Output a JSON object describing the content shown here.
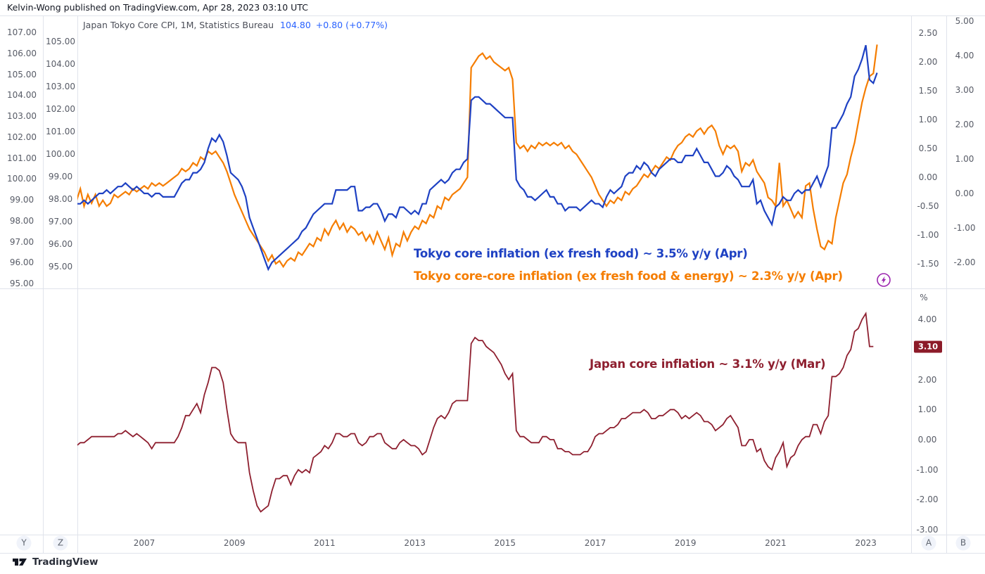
{
  "header": {
    "byline": "Kelvin-Wong published on TradingView.com, Apr 28, 2023 03:10 UTC"
  },
  "legend": {
    "title": "Japan Tokyo Core CPI, 1M, Statistics Bureau",
    "value": "104.80",
    "change": "+0.80 (+0.77%)"
  },
  "colors": {
    "blue": "#1e41c3",
    "orange": "#f57d00",
    "darkred": "#8e1f2f",
    "badge_bg": "#8c1b29",
    "legend_blue": "#2962ff",
    "purple_icon": "#9c27b0"
  },
  "axes": {
    "top_left_outer": {
      "ticks": [
        107,
        106,
        105,
        104,
        103,
        102,
        101,
        100,
        99,
        98,
        97,
        96,
        95
      ]
    },
    "top_left_inner": {
      "ticks": [
        105,
        104,
        103,
        102,
        101,
        100,
        99,
        98,
        97,
        96,
        95
      ]
    },
    "top_right_inner": {
      "ticks": [
        2.5,
        2.0,
        1.5,
        1.0,
        0.5,
        0.0,
        -0.5,
        -1.0,
        -1.5
      ]
    },
    "top_right_outer": {
      "ticks": [
        5,
        4,
        3,
        2,
        1,
        0,
        -1,
        -2
      ]
    },
    "bottom_right": {
      "unit": "%",
      "ticks": [
        4,
        2,
        1,
        0,
        -1,
        -2,
        -3
      ]
    },
    "time": {
      "ticks": [
        2007,
        2009,
        2011,
        2013,
        2015,
        2017,
        2019,
        2021,
        2023
      ]
    }
  },
  "badge": {
    "text": "3.10"
  },
  "annotations": {
    "blue": {
      "text": "Tokyo core inflation (ex fresh food) ~ 3.5% y/y (Apr)"
    },
    "orange": {
      "text": "Tokyo core-core inflation (ex fresh food & energy) ~ 2.3% y/y (Apr)"
    },
    "red": {
      "text": "Japan core inflation ~ 3.1% y/y (Mar)"
    }
  },
  "toolbar": {
    "y": "Y",
    "z": "Z",
    "a": "A",
    "b": "B"
  },
  "footer": {
    "brand": "TradingView"
  },
  "chart_data": [
    {
      "type": "line",
      "panel": "top",
      "title": "Tokyo CPI inflation y/y %",
      "x_range": [
        2005.5,
        2023.4
      ],
      "grid": false,
      "series": [
        {
          "name": "Tokyo core inflation (ex fresh food) y/y %",
          "color": "#1e41c3",
          "scale": "pct_outer",
          "axis_range": [
            -2,
            5
          ],
          "start": 2005.5,
          "step_months": 1,
          "values": [
            -0.3,
            -0.3,
            -0.2,
            -0.3,
            -0.2,
            -0.1,
            0.0,
            0.0,
            0.1,
            0.0,
            0.1,
            0.2,
            0.2,
            0.3,
            0.2,
            0.1,
            0.2,
            0.1,
            0.0,
            0.0,
            -0.1,
            0.0,
            0.0,
            -0.1,
            -0.1,
            -0.1,
            -0.1,
            0.1,
            0.3,
            0.4,
            0.4,
            0.6,
            0.6,
            0.7,
            0.9,
            1.3,
            1.6,
            1.5,
            1.7,
            1.5,
            1.1,
            0.6,
            0.5,
            0.4,
            0.2,
            -0.1,
            -0.7,
            -1.0,
            -1.3,
            -1.6,
            -1.9,
            -2.2,
            -2.0,
            -1.9,
            -1.8,
            -1.7,
            -1.6,
            -1.5,
            -1.4,
            -1.3,
            -1.1,
            -1.0,
            -0.8,
            -0.6,
            -0.5,
            -0.4,
            -0.3,
            -0.3,
            -0.3,
            0.1,
            0.1,
            0.1,
            0.1,
            0.2,
            0.2,
            -0.5,
            -0.5,
            -0.4,
            -0.4,
            -0.3,
            -0.3,
            -0.5,
            -0.8,
            -0.6,
            -0.6,
            -0.7,
            -0.4,
            -0.4,
            -0.5,
            -0.6,
            -0.5,
            -0.6,
            -0.3,
            -0.3,
            0.1,
            0.2,
            0.3,
            0.4,
            0.3,
            0.4,
            0.6,
            0.7,
            0.7,
            0.9,
            1.0,
            2.7,
            2.8,
            2.8,
            2.7,
            2.6,
            2.6,
            2.5,
            2.4,
            2.3,
            2.2,
            2.2,
            2.2,
            0.4,
            0.2,
            0.1,
            -0.1,
            -0.1,
            -0.2,
            -0.1,
            0.0,
            0.1,
            -0.1,
            -0.1,
            -0.3,
            -0.3,
            -0.5,
            -0.4,
            -0.4,
            -0.4,
            -0.5,
            -0.4,
            -0.3,
            -0.2,
            -0.3,
            -0.3,
            -0.4,
            -0.1,
            0.1,
            0.0,
            0.1,
            0.2,
            0.5,
            0.6,
            0.6,
            0.8,
            0.7,
            0.9,
            0.8,
            0.6,
            0.5,
            0.7,
            0.8,
            0.9,
            1.0,
            1.0,
            0.9,
            0.9,
            1.1,
            1.1,
            1.1,
            1.3,
            1.1,
            0.9,
            0.9,
            0.7,
            0.5,
            0.5,
            0.6,
            0.8,
            0.7,
            0.5,
            0.4,
            0.2,
            0.2,
            0.2,
            0.4,
            -0.3,
            -0.2,
            -0.5,
            -0.7,
            -0.9,
            -0.4,
            -0.3,
            -0.1,
            -0.2,
            -0.2,
            0.0,
            0.1,
            0.0,
            0.1,
            0.1,
            0.3,
            0.5,
            0.2,
            0.5,
            0.8,
            1.9,
            1.9,
            2.1,
            2.3,
            2.6,
            2.8,
            3.4,
            3.6,
            3.9,
            4.3,
            3.3,
            3.2,
            3.5
          ]
        },
        {
          "name": "Tokyo core-core inflation (ex fresh food & energy) y/y %",
          "color": "#f57d00",
          "scale": "pct_inner",
          "axis_range": [
            -1.5,
            2.5
          ],
          "start": 2005.5,
          "step_months": 1,
          "values": [
            -0.4,
            -0.2,
            -0.5,
            -0.3,
            -0.45,
            -0.3,
            -0.5,
            -0.4,
            -0.5,
            -0.45,
            -0.3,
            -0.35,
            -0.3,
            -0.25,
            -0.3,
            -0.2,
            -0.25,
            -0.2,
            -0.15,
            -0.2,
            -0.1,
            -0.15,
            -0.1,
            -0.15,
            -0.1,
            -0.05,
            0.0,
            0.05,
            0.15,
            0.1,
            0.15,
            0.25,
            0.2,
            0.35,
            0.3,
            0.45,
            0.4,
            0.45,
            0.35,
            0.25,
            0.1,
            -0.1,
            -0.3,
            -0.45,
            -0.6,
            -0.75,
            -0.9,
            -1.0,
            -1.1,
            -1.2,
            -1.3,
            -1.45,
            -1.35,
            -1.5,
            -1.45,
            -1.55,
            -1.45,
            -1.4,
            -1.45,
            -1.3,
            -1.35,
            -1.25,
            -1.15,
            -1.2,
            -1.05,
            -1.1,
            -0.9,
            -1.0,
            -0.85,
            -0.75,
            -0.9,
            -0.8,
            -0.95,
            -0.85,
            -0.9,
            -1.0,
            -0.95,
            -1.1,
            -1.0,
            -1.15,
            -0.95,
            -1.1,
            -1.25,
            -1.05,
            -1.35,
            -1.15,
            -1.2,
            -0.95,
            -1.1,
            -0.95,
            -0.85,
            -0.9,
            -0.75,
            -0.8,
            -0.65,
            -0.7,
            -0.5,
            -0.55,
            -0.35,
            -0.4,
            -0.3,
            -0.25,
            -0.2,
            -0.1,
            0.0,
            1.9,
            2.0,
            2.1,
            2.15,
            2.05,
            2.1,
            2.0,
            1.95,
            1.9,
            1.85,
            1.9,
            1.7,
            0.6,
            0.5,
            0.55,
            0.45,
            0.55,
            0.5,
            0.6,
            0.55,
            0.6,
            0.55,
            0.6,
            0.55,
            0.6,
            0.5,
            0.55,
            0.45,
            0.4,
            0.3,
            0.2,
            0.1,
            0.0,
            -0.15,
            -0.3,
            -0.4,
            -0.5,
            -0.4,
            -0.45,
            -0.35,
            -0.4,
            -0.25,
            -0.3,
            -0.2,
            -0.15,
            -0.05,
            0.05,
            0.0,
            0.1,
            0.2,
            0.15,
            0.25,
            0.35,
            0.3,
            0.45,
            0.55,
            0.6,
            0.7,
            0.75,
            0.7,
            0.8,
            0.85,
            0.75,
            0.85,
            0.9,
            0.8,
            0.55,
            0.4,
            0.55,
            0.5,
            0.55,
            0.45,
            0.1,
            0.25,
            0.2,
            0.3,
            0.1,
            0.0,
            -0.1,
            -0.35,
            -0.4,
            -0.5,
            0.25,
            -0.5,
            -0.4,
            -0.55,
            -0.7,
            -0.6,
            -0.7,
            -0.15,
            -0.1,
            -0.55,
            -0.9,
            -1.2,
            -1.25,
            -1.1,
            -1.15,
            -0.7,
            -0.4,
            -0.1,
            0.05,
            0.35,
            0.6,
            0.95,
            1.3,
            1.55,
            1.75,
            1.8,
            2.3
          ]
        }
      ]
    },
    {
      "type": "line",
      "panel": "bottom",
      "title": "Japan core inflation y/y %",
      "x_range": [
        2005.5,
        2023.4
      ],
      "grid": false,
      "series": [
        {
          "name": "Japan core inflation y/y %",
          "color": "#8e1f2f",
          "scale": "pct_bottom",
          "axis_range": [
            -3,
            4
          ],
          "last_value": 3.1,
          "start": 2005.5,
          "step_months": 1,
          "values": [
            -0.2,
            -0.1,
            -0.1,
            0.0,
            0.1,
            0.1,
            0.1,
            0.1,
            0.1,
            0.1,
            0.1,
            0.2,
            0.2,
            0.3,
            0.2,
            0.1,
            0.2,
            0.1,
            0.0,
            -0.1,
            -0.3,
            -0.1,
            -0.1,
            -0.1,
            -0.1,
            -0.1,
            -0.1,
            0.1,
            0.4,
            0.8,
            0.8,
            1.0,
            1.2,
            0.9,
            1.5,
            1.9,
            2.4,
            2.4,
            2.3,
            1.9,
            1.0,
            0.2,
            0.0,
            -0.1,
            -0.1,
            -0.1,
            -1.1,
            -1.7,
            -2.2,
            -2.4,
            -2.3,
            -2.2,
            -1.7,
            -1.3,
            -1.3,
            -1.2,
            -1.2,
            -1.5,
            -1.2,
            -1.0,
            -1.1,
            -1.0,
            -1.1,
            -0.6,
            -0.5,
            -0.4,
            -0.2,
            -0.3,
            -0.1,
            0.2,
            0.2,
            0.1,
            0.1,
            0.2,
            0.2,
            -0.1,
            -0.2,
            -0.1,
            0.1,
            0.1,
            0.2,
            0.2,
            -0.1,
            -0.2,
            -0.3,
            -0.3,
            -0.1,
            0.0,
            -0.1,
            -0.2,
            -0.2,
            -0.3,
            -0.5,
            -0.4,
            0.0,
            0.4,
            0.7,
            0.8,
            0.7,
            0.9,
            1.2,
            1.3,
            1.3,
            1.3,
            1.3,
            3.2,
            3.4,
            3.3,
            3.3,
            3.1,
            3.0,
            2.9,
            2.7,
            2.5,
            2.2,
            2.0,
            2.2,
            0.3,
            0.1,
            0.1,
            0.0,
            -0.1,
            -0.1,
            -0.1,
            0.1,
            0.1,
            0.0,
            0.0,
            -0.3,
            -0.3,
            -0.4,
            -0.4,
            -0.5,
            -0.5,
            -0.5,
            -0.4,
            -0.4,
            -0.2,
            0.1,
            0.2,
            0.2,
            0.3,
            0.4,
            0.4,
            0.5,
            0.7,
            0.7,
            0.8,
            0.9,
            0.9,
            0.9,
            1.0,
            0.9,
            0.7,
            0.7,
            0.8,
            0.8,
            0.9,
            1.0,
            1.0,
            0.9,
            0.7,
            0.8,
            0.7,
            0.8,
            0.9,
            0.8,
            0.6,
            0.6,
            0.5,
            0.3,
            0.4,
            0.5,
            0.7,
            0.8,
            0.6,
            0.4,
            -0.2,
            -0.2,
            0.0,
            0.0,
            -0.4,
            -0.3,
            -0.7,
            -0.9,
            -1.0,
            -0.6,
            -0.4,
            -0.1,
            -0.9,
            -0.6,
            -0.5,
            -0.2,
            0.0,
            0.1,
            0.1,
            0.5,
            0.5,
            0.2,
            0.6,
            0.8,
            2.1,
            2.1,
            2.2,
            2.4,
            2.8,
            3.0,
            3.6,
            3.7,
            4.0,
            4.2,
            3.1,
            3.1
          ]
        }
      ]
    }
  ]
}
